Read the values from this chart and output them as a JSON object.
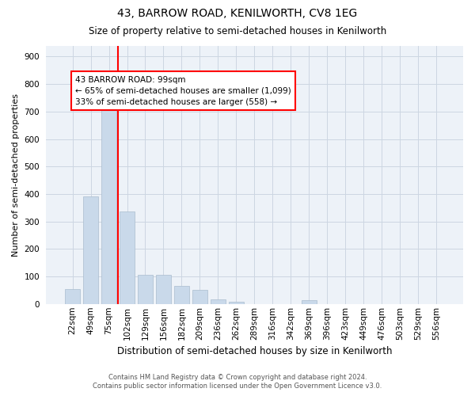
{
  "title": "43, BARROW ROAD, KENILWORTH, CV8 1EG",
  "subtitle": "Size of property relative to semi-detached houses in Kenilworth",
  "xlabel": "Distribution of semi-detached houses by size in Kenilworth",
  "ylabel": "Number of semi-detached properties",
  "footer_line1": "Contains HM Land Registry data © Crown copyright and database right 2024.",
  "footer_line2": "Contains public sector information licensed under the Open Government Licence v3.0.",
  "bar_labels": [
    "22sqm",
    "49sqm",
    "75sqm",
    "102sqm",
    "129sqm",
    "156sqm",
    "182sqm",
    "209sqm",
    "236sqm",
    "262sqm",
    "289sqm",
    "316sqm",
    "342sqm",
    "369sqm",
    "396sqm",
    "423sqm",
    "449sqm",
    "476sqm",
    "503sqm",
    "529sqm",
    "556sqm"
  ],
  "bar_values": [
    55,
    390,
    730,
    335,
    105,
    105,
    65,
    50,
    18,
    9,
    0,
    0,
    0,
    15,
    0,
    0,
    0,
    0,
    0,
    0,
    0
  ],
  "bar_color": "#c9d9ea",
  "bar_edge_color": "#aabcce",
  "grid_color": "#ccd6e2",
  "bg_color": "#edf2f8",
  "property_line_color": "red",
  "property_line_x": 2.5,
  "annotation_text_line1": "43 BARROW ROAD: 99sqm",
  "annotation_text_line2": "← 65% of semi-detached houses are smaller (1,099)",
  "annotation_text_line3": "33% of semi-detached houses are larger (558) →",
  "ylim_max": 940,
  "yticks": [
    0,
    100,
    200,
    300,
    400,
    500,
    600,
    700,
    800,
    900
  ],
  "title_fontsize": 10,
  "subtitle_fontsize": 8.5,
  "ylabel_fontsize": 8,
  "xlabel_fontsize": 8.5,
  "tick_fontsize": 7.5,
  "footer_fontsize": 6,
  "ann_fontsize": 7.5
}
